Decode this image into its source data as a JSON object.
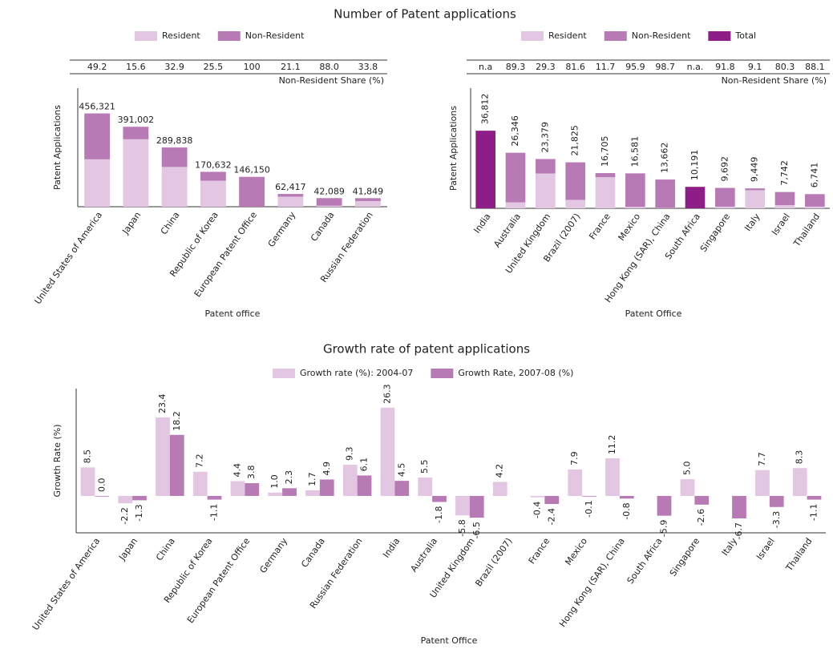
{
  "chart_data": [
    {
      "type": "stacked_bar",
      "title": "Number of Patent applications",
      "y_label": "Patent Applications",
      "x_label": "Patent office",
      "categories": [
        "United States of America",
        "Japan",
        "China",
        "Republic of Korea",
        "European Patent Office",
        "Germany",
        "Canada",
        "Russian Federation"
      ],
      "series": [
        {
          "name": "Resident",
          "color": "#e3c6e2",
          "values": [
            231811,
            330006,
            194481,
            127121,
            0,
            49247,
            5051,
            27704
          ]
        },
        {
          "name": "Non-Resident",
          "color": "#b87ab5",
          "values": [
            224510,
            60996,
            95357,
            43511,
            146150,
            13170,
            37038,
            14145
          ]
        }
      ],
      "totals": {
        "values": [
          456321,
          391002,
          289838,
          170632,
          146150,
          62417,
          42089,
          41849
        ],
        "value_labels": [
          "456,321",
          "391,002",
          "289,838",
          "170,632",
          "146,150",
          "62,417",
          "42,089",
          "41,849"
        ]
      },
      "share_row": {
        "label": "Non-Resident Share (%)",
        "values": [
          "49.2",
          "15.6",
          "32.9",
          "25.5",
          "100",
          "21.1",
          "88.0",
          "33.8"
        ]
      },
      "ylim": [
        0,
        580000
      ]
    },
    {
      "type": "stacked_bar",
      "y_label": "Patent Applications",
      "x_label": "Patent Office",
      "categories": [
        "India",
        "Australia",
        "United Kingdom",
        "Brazil (2007)",
        "France",
        "Mexico",
        "Hong Kong (SAR), China",
        "South Africa",
        "Singapore",
        "Italy",
        "Israel",
        "Thailand"
      ],
      "series": [
        {
          "name": "Resident",
          "color": "#e3c6e2",
          "values": [
            null,
            2819,
            16529,
            4016,
            14751,
            680,
            178,
            null,
            795,
            8589,
            1525,
            802
          ]
        },
        {
          "name": "Non-Resident",
          "color": "#b87ab5",
          "values": [
            null,
            23527,
            6850,
            17809,
            1954,
            15901,
            13484,
            null,
            8897,
            860,
            6217,
            5939
          ]
        },
        {
          "name": "Total",
          "color": "#8f1d87",
          "values": [
            36812,
            null,
            null,
            null,
            null,
            null,
            null,
            10191,
            null,
            null,
            null,
            null
          ]
        }
      ],
      "totals": {
        "values": [
          36812,
          26346,
          23379,
          21825,
          16705,
          16581,
          13662,
          10191,
          9692,
          9449,
          7742,
          6741
        ],
        "value_labels": [
          "36,812",
          "26,346",
          "23,379",
          "21,825",
          "16,705",
          "16,581",
          "13,662",
          "10,191",
          "9,692",
          "9,449",
          "7,742",
          "6,741"
        ]
      },
      "share_row": {
        "label": "Non-Resident Share (%)",
        "values": [
          "n.a",
          "89.3",
          "29.3",
          "81.6",
          "11.7",
          "95.9",
          "98.7",
          "n.a.",
          "91.8",
          "9.1",
          "80.3",
          "88.1"
        ]
      },
      "ylim": [
        0,
        57000
      ]
    },
    {
      "type": "grouped_bar",
      "title": "Growth rate of patent applications",
      "y_label": "Growth Rate (%)",
      "x_label": "Patent Office",
      "categories": [
        "United States of America",
        "Japan",
        "China",
        "Republic of Korea",
        "European Patent Office",
        "Germany",
        "Canada",
        "Russian Federation",
        "India",
        "Australia",
        "United Kingdom",
        "Brazil (2007)",
        "France",
        "Mexico",
        "Hong Kong (SAR), China",
        "South Africa",
        "Singapore",
        "Italy",
        "Israel",
        "Thailand"
      ],
      "series": [
        {
          "name": "Growth rate (%): 2004-07",
          "color": "#e3c6e2",
          "values": [
            8.5,
            -2.2,
            23.4,
            7.2,
            4.4,
            1.0,
            1.7,
            9.3,
            26.3,
            5.5,
            -5.8,
            4.2,
            -0.4,
            7.9,
            11.2,
            null,
            5.0,
            null,
            7.7,
            8.3
          ],
          "value_labels": [
            "8.5",
            "-2.2",
            "23.4",
            "7.2",
            "4.4",
            "1.0",
            "1.7",
            "9.3",
            "26.3",
            "5.5",
            "-5.8",
            "4.2",
            "-0.4",
            "7.9",
            "11.2",
            null,
            "5.0",
            null,
            "7.7",
            "8.3"
          ]
        },
        {
          "name": "Growth Rate, 2007-08 (%)",
          "color": "#b87ab5",
          "values": [
            0.0,
            -1.3,
            18.2,
            -1.1,
            3.8,
            2.3,
            4.9,
            6.1,
            4.5,
            -1.8,
            -6.5,
            null,
            -2.4,
            -0.1,
            -0.8,
            -5.9,
            -2.6,
            -6.7,
            -3.3,
            -1.1
          ],
          "value_labels": [
            "0.0",
            "-1.3",
            "18.2",
            "-1.1",
            "3.8",
            "2.3",
            "4.9",
            "6.1",
            "4.5",
            "-1.8",
            "-6.5",
            null,
            "-2.4",
            "-0.1",
            "-0.8",
            "-5.9",
            "-2.6",
            "-6.7",
            "-3.3",
            "-1.1"
          ]
        }
      ],
      "ylim": [
        -11,
        32
      ]
    }
  ]
}
